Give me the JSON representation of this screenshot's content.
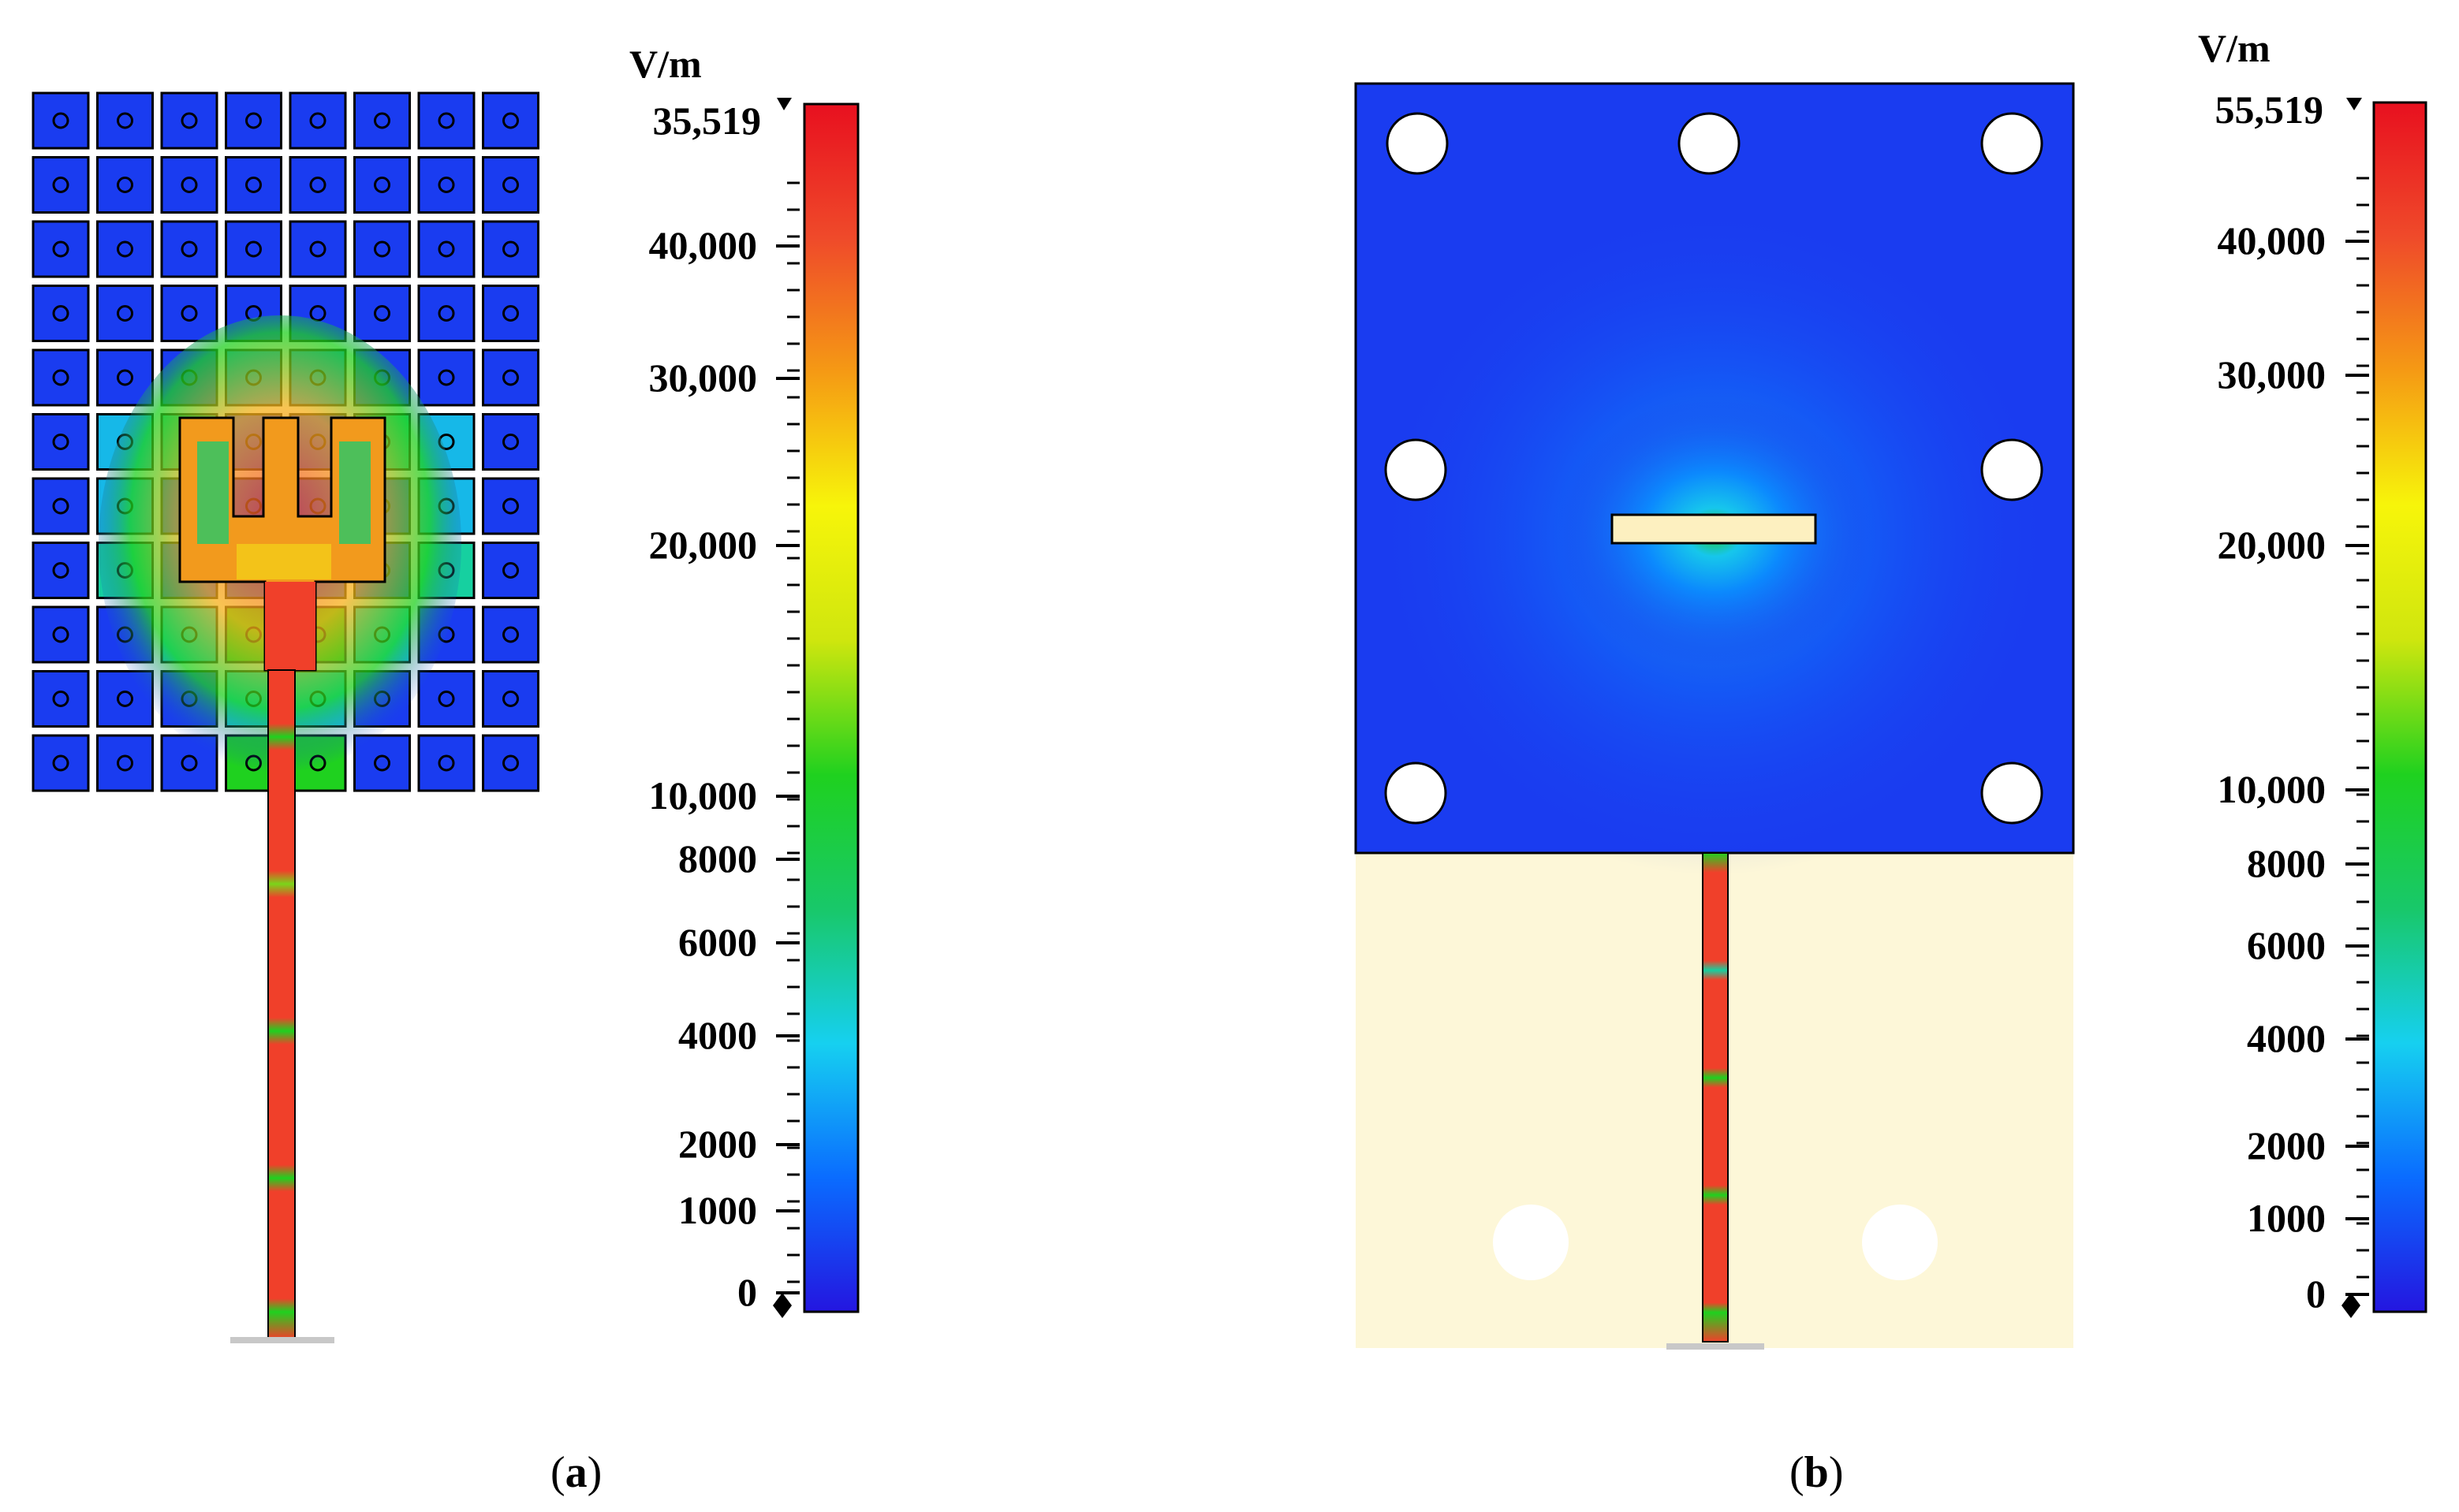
{
  "colors": {
    "blue": "#1a3cf0",
    "cream": "#fdf7d8",
    "hot": "#f0402a",
    "white": "#ffffff"
  },
  "colorbar_stops": [
    "#2416e0",
    "#0a6cff",
    "#16d0f0",
    "#18c86a",
    "#1fd11f",
    "#cfe60e",
    "#f7f50a",
    "#f59a14",
    "#ef4a2a",
    "#e8101f"
  ],
  "panels": {
    "a": {
      "caption_letter": "a",
      "unit": "V/m",
      "max_label": "35,519",
      "ticks": [
        "40,000",
        "30,000",
        "20,000",
        "10,000",
        "8000",
        "6000",
        "4000",
        "2000",
        "1000",
        "0"
      ]
    },
    "b": {
      "caption_letter": "b",
      "unit": "V/m",
      "max_label": "55,519",
      "ticks": [
        "40,000",
        "30,000",
        "20,000",
        "10,000",
        "8000",
        "6000",
        "4000",
        "2000",
        "1000",
        "0"
      ]
    }
  }
}
